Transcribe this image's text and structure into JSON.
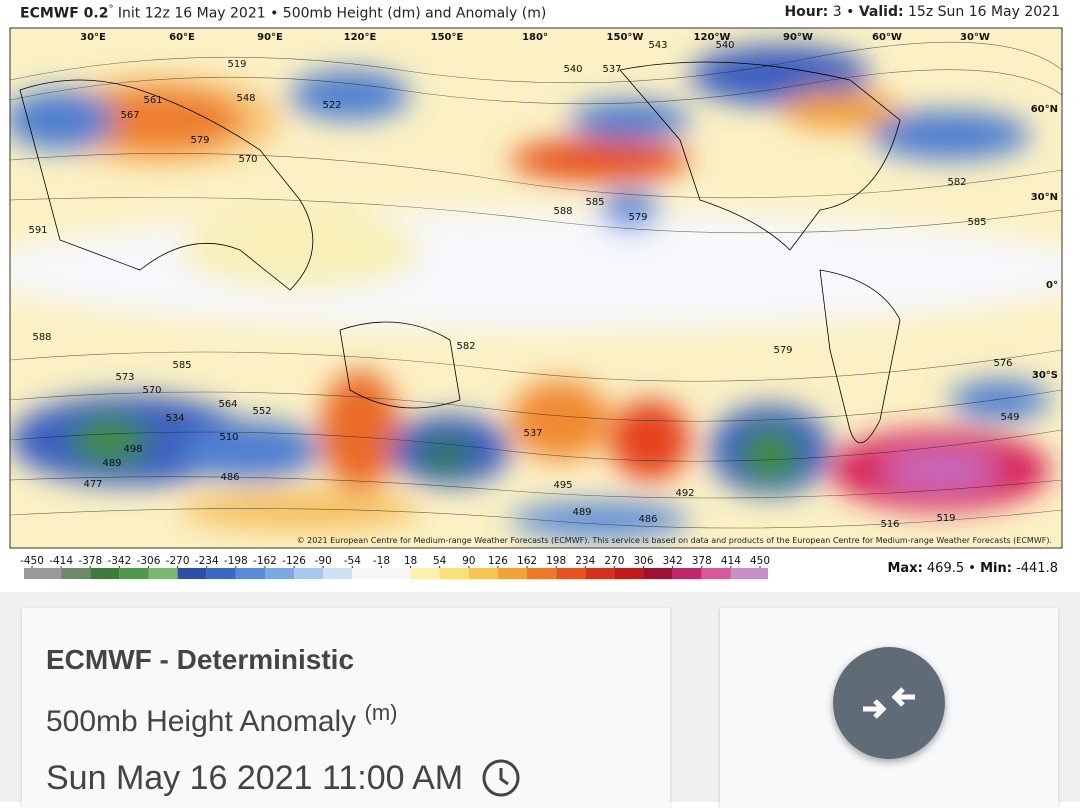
{
  "header": {
    "model": "ECMWF 0.2",
    "degree": "°",
    "rest": "Init 12z 16 May 2021 • 500mb Height (dm) and Anomaly (m)",
    "hour_label": "Hour:",
    "hour": "3",
    "sep": "•",
    "valid_label": "Valid:",
    "valid": "15z Sun 16 May 2021"
  },
  "map": {
    "longitudes": [
      "30°E",
      "60°E",
      "90°E",
      "120°E",
      "150°E",
      "180°",
      "150°W",
      "120°W",
      "90°W",
      "60°W",
      "30°W"
    ],
    "latitudes": [
      "60°N",
      "30°N",
      "0°",
      "30°S"
    ],
    "contour_labels": [
      "579",
      "567",
      "561",
      "519",
      "548",
      "522",
      "570",
      "540",
      "537",
      "543",
      "540",
      "588",
      "585",
      "579",
      "582",
      "585",
      "591",
      "588",
      "585",
      "582",
      "573",
      "570",
      "564",
      "552",
      "534",
      "510",
      "498",
      "489",
      "486",
      "477",
      "495",
      "486",
      "489",
      "579",
      "576",
      "549",
      "516",
      "519",
      "492",
      "537"
    ],
    "copyright": "© 2021 European Centre for Medium-range Weather Forecasts (ECMWF). This service is based on data and products of the European Centre for Medium-range Weather Forecasts (ECMWF)."
  },
  "colorbar": {
    "ticks": [
      -450,
      -414,
      -378,
      -342,
      -306,
      -270,
      -234,
      -198,
      -162,
      -126,
      -90,
      -54,
      -18,
      18,
      54,
      90,
      126,
      162,
      198,
      234,
      270,
      306,
      342,
      378,
      414,
      450
    ],
    "max_label": "Max:",
    "max": 469.5,
    "sep": "•",
    "min_label": "Min:",
    "min": -441.8
  },
  "card": {
    "title": "ECMWF - Deterministic",
    "product": "500mb Height Anomaly",
    "unit": "(m)",
    "time": "Sun May 16 2021 11:00 AM"
  }
}
